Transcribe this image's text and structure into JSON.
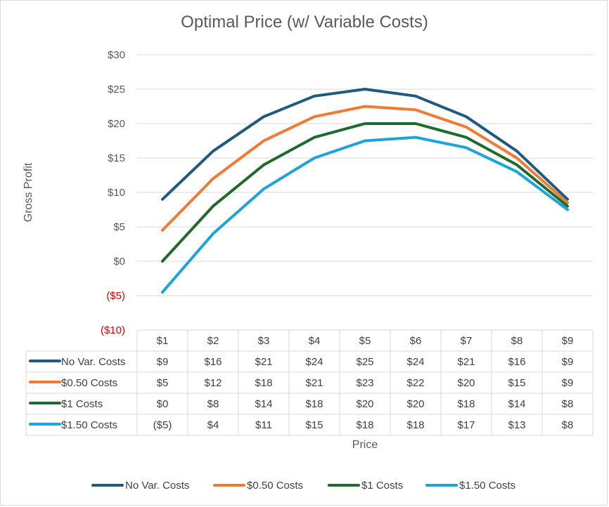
{
  "chart_data": {
    "type": "line",
    "title": "Optimal Price (w/ Variable Costs)",
    "xlabel": "Price",
    "ylabel": "Gross Profit",
    "categories": [
      "$1",
      "$2",
      "$3",
      "$4",
      "$5",
      "$6",
      "$7",
      "$8",
      "$9"
    ],
    "ylim": [
      -10,
      30
    ],
    "y_ticks": [
      {
        "value": 30,
        "label": "$30"
      },
      {
        "value": 25,
        "label": "$25"
      },
      {
        "value": 20,
        "label": "$20"
      },
      {
        "value": 15,
        "label": "$15"
      },
      {
        "value": 10,
        "label": "$10"
      },
      {
        "value": 5,
        "label": "$5"
      },
      {
        "value": 0,
        "label": "$0"
      },
      {
        "value": -5,
        "label": "($5)"
      },
      {
        "value": -10,
        "label": "($10)"
      }
    ],
    "grid": true,
    "legend": "bottom",
    "data_table": true,
    "series": [
      {
        "name": "No Var. Costs",
        "color": "#1f5b7f",
        "values": [
          9,
          16,
          21,
          24,
          25,
          24,
          21,
          16,
          9
        ],
        "labels": [
          "$9",
          "$16",
          "$21",
          "$24",
          "$25",
          "$24",
          "$21",
          "$16",
          "$9"
        ]
      },
      {
        "name": "$0.50 Costs",
        "color": "#ef7b37",
        "values": [
          4.5,
          12,
          17.5,
          21,
          22.5,
          22,
          19.5,
          15,
          8.5
        ],
        "labels": [
          "$5",
          "$12",
          "$18",
          "$21",
          "$23",
          "$22",
          "$20",
          "$15",
          "$9"
        ]
      },
      {
        "name": "$1 Costs",
        "color": "#1f6b2e",
        "values": [
          0,
          8,
          14,
          18,
          20,
          20,
          18,
          14,
          8
        ],
        "labels": [
          "$0",
          "$8",
          "$14",
          "$18",
          "$20",
          "$20",
          "$18",
          "$14",
          "$8"
        ]
      },
      {
        "name": "$1.50 Costs",
        "color": "#1fa3d8",
        "values": [
          -4.5,
          4,
          10.5,
          15,
          17.5,
          18,
          16.5,
          13,
          7.5
        ],
        "labels": [
          "($5)",
          "$4",
          "$11",
          "$15",
          "$18",
          "$18",
          "$17",
          "$13",
          "$8"
        ]
      }
    ]
  }
}
